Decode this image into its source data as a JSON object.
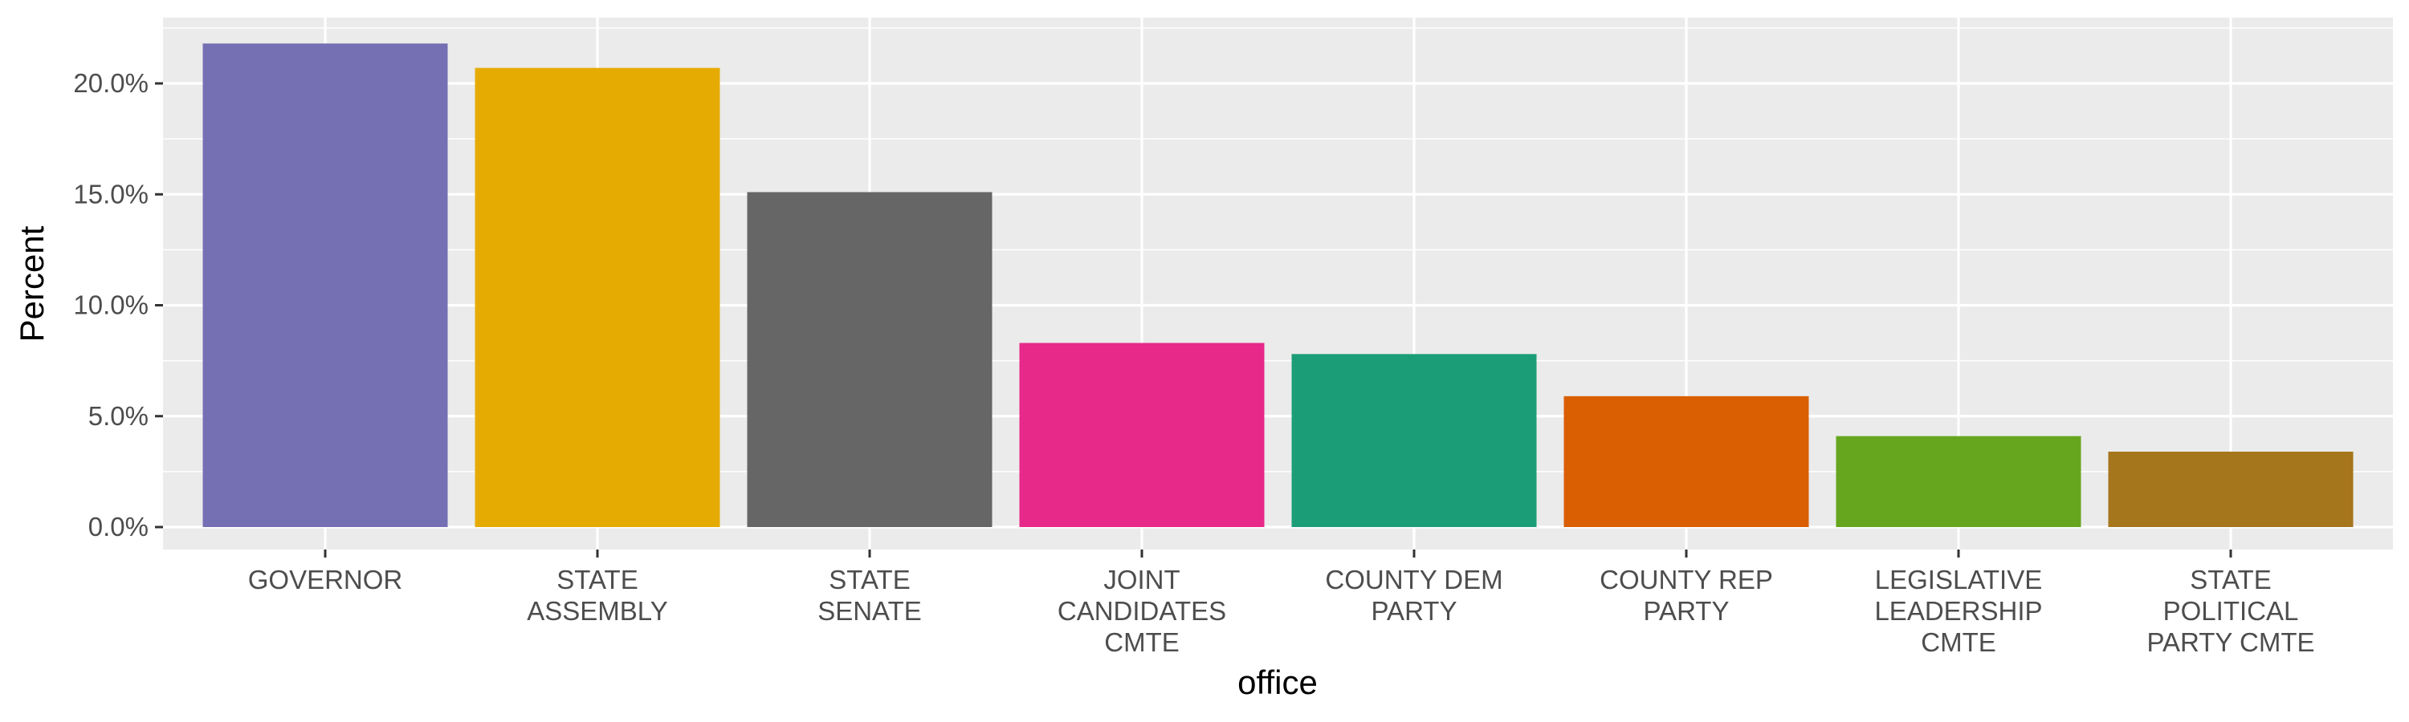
{
  "chart_data": {
    "type": "bar",
    "xlabel": "office",
    "ylabel": "Percent",
    "ylim": [
      0,
      0.23
    ],
    "yticks": [
      0,
      0.05,
      0.1,
      0.15,
      0.2
    ],
    "ytick_labels": [
      "0.0%",
      "5.0%",
      "10.0%",
      "15.0%",
      "20.0%"
    ],
    "grid": true,
    "legend": "none",
    "categories": [
      "GOVERNOR",
      "STATE ASSEMBLY",
      "STATE SENATE",
      "JOINT CANDIDATES CMTE",
      "COUNTY DEM PARTY",
      "COUNTY REP PARTY",
      "LEGISLATIVE LEADERSHIP CMTE",
      "STATE POLITICAL PARTY CMTE"
    ],
    "category_label_lines": [
      [
        "GOVERNOR"
      ],
      [
        "STATE",
        "ASSEMBLY"
      ],
      [
        "STATE",
        "SENATE"
      ],
      [
        "JOINT",
        "CANDIDATES",
        "CMTE"
      ],
      [
        "COUNTY DEM",
        "PARTY"
      ],
      [
        "COUNTY REP",
        "PARTY"
      ],
      [
        "LEGISLATIVE",
        "LEADERSHIP",
        "CMTE"
      ],
      [
        "STATE",
        "POLITICAL",
        "PARTY CMTE"
      ]
    ],
    "values": [
      0.218,
      0.207,
      0.151,
      0.083,
      0.078,
      0.059,
      0.041,
      0.034
    ],
    "colors": [
      "#7570b3",
      "#e6ab02",
      "#666666",
      "#e7298a",
      "#1b9e77",
      "#d95f02",
      "#66a61e",
      "#a6761d"
    ],
    "panel_background": "#ebebeb",
    "gridline_color": "#ffffff"
  }
}
